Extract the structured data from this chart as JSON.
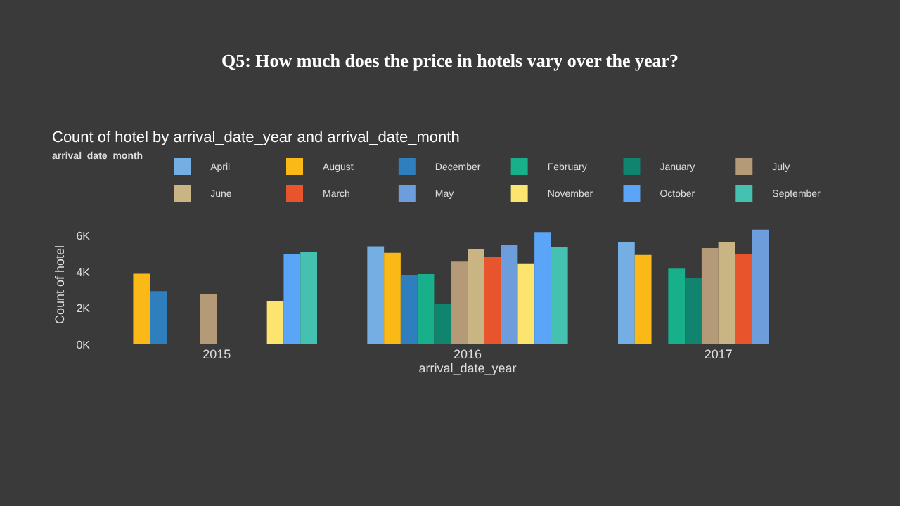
{
  "chart_data": {
    "type": "bar",
    "title": "Q5: How much does the price in hotels vary over the year?",
    "subtitle": "Count of hotel by arrival_date_year and arrival_date_month",
    "xlabel": "arrival_date_year",
    "ylabel": "Count of hotel",
    "legend_title": "arrival_date_month",
    "legend": "top left",
    "categories": [
      "2015",
      "2016",
      "2017"
    ],
    "ylim": [
      0,
      6600
    ],
    "yticks": [
      {
        "value": 0,
        "label": "0K"
      },
      {
        "value": 2000,
        "label": "2K"
      },
      {
        "value": 4000,
        "label": "4K"
      },
      {
        "value": 6000,
        "label": "6K"
      }
    ],
    "series": [
      {
        "name": "April",
        "color": "#74aee3",
        "values": [
          null,
          5420,
          5670
        ]
      },
      {
        "name": "August",
        "color": "#fbb917",
        "values": [
          3900,
          5060,
          4940
        ]
      },
      {
        "name": "December",
        "color": "#2f7ebd",
        "values": [
          2940,
          3830,
          null
        ]
      },
      {
        "name": "February",
        "color": "#17b08a",
        "values": [
          null,
          3880,
          4180
        ]
      },
      {
        "name": "January",
        "color": "#11846f",
        "values": [
          null,
          2250,
          3690
        ]
      },
      {
        "name": "July",
        "color": "#b59a78",
        "values": [
          2770,
          4570,
          5320
        ]
      },
      {
        "name": "June",
        "color": "#c8b583",
        "values": [
          null,
          5280,
          5650
        ]
      },
      {
        "name": "March",
        "color": "#e8552c",
        "values": [
          null,
          4820,
          4990
        ]
      },
      {
        "name": "May",
        "color": "#6d9edb",
        "values": [
          null,
          5490,
          6340
        ]
      },
      {
        "name": "November",
        "color": "#fde46e",
        "values": [
          2370,
          4470,
          null
        ]
      },
      {
        "name": "October",
        "color": "#5aa5f8",
        "values": [
          4990,
          6200,
          null
        ]
      },
      {
        "name": "September",
        "color": "#45c1b1",
        "values": [
          5100,
          5390,
          null
        ]
      }
    ]
  }
}
